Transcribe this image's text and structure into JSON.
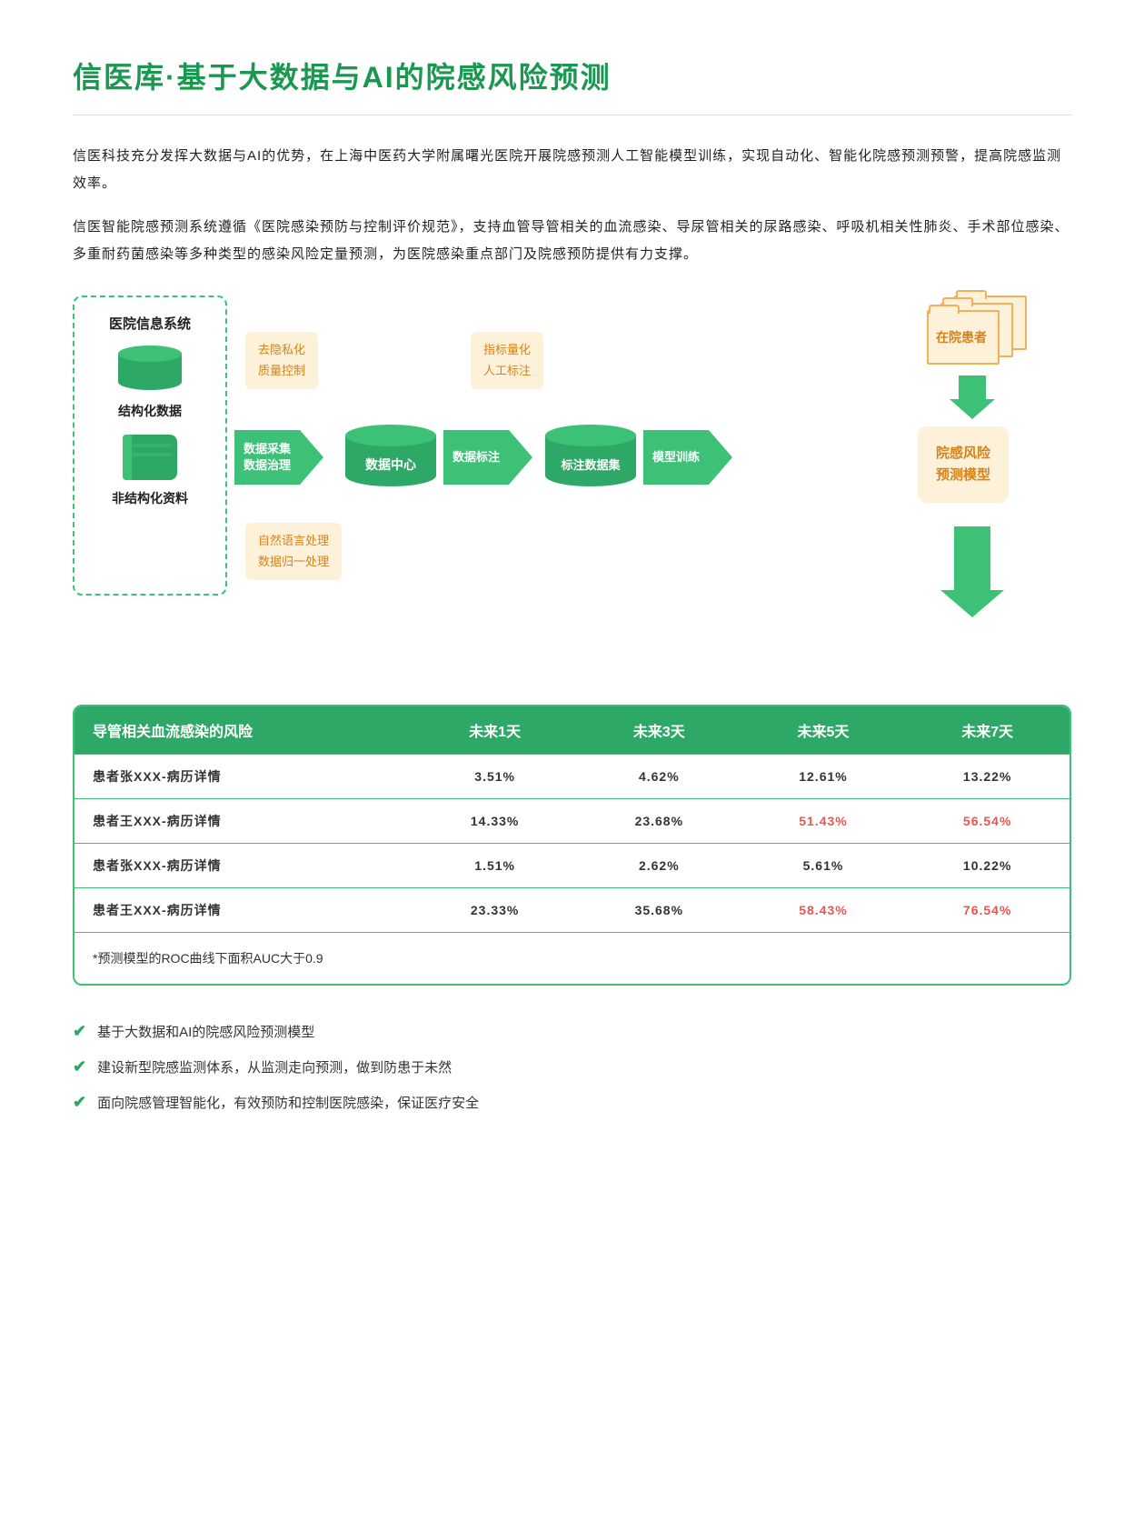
{
  "colors": {
    "green": "#2ea866",
    "green_light": "#3cc177",
    "orange_bg": "#fdf1da",
    "orange_text": "#d5841b",
    "risk_high": "#e8564e"
  },
  "title": "信医库·基于大数据与AI的院感风险预测",
  "para1": "信医科技充分发挥大数据与AI的优势，在上海中医药大学附属曙光医院开展院感预测人工智能模型训练，实现自动化、智能化院感预测预警，提高院感监测效率。",
  "para2": "信医智能院感预测系统遵循《医院感染预防与控制评价规范》，支持血管导管相关的血流感染、导尿管相关的尿路感染、呼吸机相关性肺炎、手术部位感染、多重耐药菌感染等多种类型的感染风险定量预测，为医院感染重点部门及院感预防提供有力支撑。",
  "diagram": {
    "source_box": {
      "title": "医院信息系统",
      "struct": "结构化数据",
      "unstruct": "非结构化资料"
    },
    "patient_box": "在院患者",
    "model_box": "院感风险\n预测模型",
    "arrows": {
      "a1": [
        "数据采集",
        "数据治理"
      ],
      "a2": "数据标注",
      "a3": "模型训练"
    },
    "cyl1": "数据中心",
    "cyl2": "标注数据集",
    "tags": {
      "top1": [
        "去隐私化",
        "质量控制"
      ],
      "top2": [
        "指标量化",
        "人工标注"
      ],
      "bot1": [
        "自然语言处理",
        "数据归一处理"
      ]
    }
  },
  "table": {
    "headers": [
      "导管相关血流感染的风险",
      "未来1天",
      "未来3天",
      "未来5天",
      "未来7天"
    ],
    "rows": [
      {
        "name": "患者张XXX-病历详情",
        "vals": [
          "3.51%",
          "4.62%",
          "12.61%",
          "13.22%"
        ],
        "high": [
          false,
          false,
          false,
          false
        ]
      },
      {
        "name": "患者王XXX-病历详情",
        "vals": [
          "14.33%",
          "23.68%",
          "51.43%",
          "56.54%"
        ],
        "high": [
          false,
          false,
          true,
          true
        ]
      },
      {
        "name": "患者张XXX-病历详情",
        "vals": [
          "1.51%",
          "2.62%",
          "5.61%",
          "10.22%"
        ],
        "high": [
          false,
          false,
          false,
          false
        ]
      },
      {
        "name": "患者王XXX-病历详情",
        "vals": [
          "23.33%",
          "35.68%",
          "58.43%",
          "76.54%"
        ],
        "high": [
          false,
          false,
          true,
          true
        ]
      }
    ],
    "note": "*预测模型的ROC曲线下面积AUC大于0.9"
  },
  "bullets": [
    "基于大数据和AI的院感风险预测模型",
    "建设新型院感监测体系，从监测走向预测，做到防患于未然",
    "面向院感管理智能化，有效预防和控制医院感染，保证医疗安全"
  ]
}
